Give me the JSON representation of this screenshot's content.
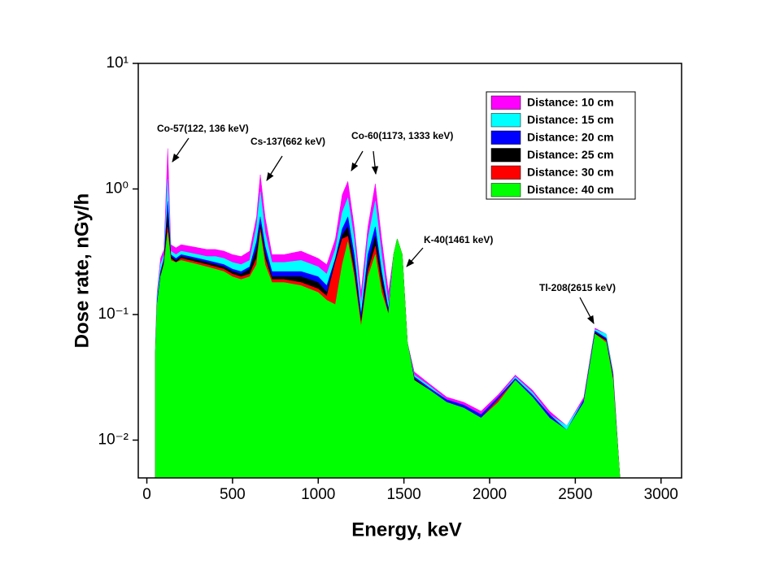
{
  "chart_data": {
    "type": "area",
    "log_y": true,
    "x_label": "Energy, keV",
    "y_label": "Dose rate, nGy/h",
    "xlim": [
      -50,
      3120
    ],
    "ylim": [
      0.005,
      10
    ],
    "xticks": [
      0,
      500,
      1000,
      1500,
      2000,
      2500,
      3000
    ],
    "yticks": [
      {
        "value": 0.01,
        "label": "10⁻²"
      },
      {
        "value": 0.1,
        "label": "10⁻¹"
      },
      {
        "value": 1,
        "label": "10⁰"
      },
      {
        "value": 10,
        "label": "10¹"
      }
    ],
    "legend": "upper right",
    "x": [
      50,
      60,
      80,
      100,
      122,
      140,
      170,
      200,
      250,
      300,
      350,
      400,
      450,
      500,
      550,
      600,
      640,
      662,
      690,
      730,
      800,
      900,
      1000,
      1050,
      1100,
      1140,
      1173,
      1210,
      1250,
      1290,
      1333,
      1370,
      1410,
      1440,
      1461,
      1490,
      1520,
      1560,
      1650,
      1750,
      1850,
      1950,
      2050,
      2150,
      2250,
      2350,
      2450,
      2550,
      2615,
      2680,
      2720,
      2760,
      2800,
      3000
    ],
    "series": [
      {
        "name": "Distance: 10 cm",
        "color": "#ff00ff",
        "values": [
          0.06,
          0.15,
          0.28,
          0.33,
          2.1,
          0.36,
          0.34,
          0.36,
          0.35,
          0.34,
          0.33,
          0.33,
          0.32,
          0.3,
          0.29,
          0.32,
          0.6,
          1.3,
          0.6,
          0.3,
          0.3,
          0.32,
          0.28,
          0.25,
          0.4,
          0.9,
          1.15,
          0.5,
          0.15,
          0.5,
          1.1,
          0.4,
          0.15,
          0.3,
          0.4,
          0.3,
          0.06,
          0.035,
          0.028,
          0.022,
          0.02,
          0.017,
          0.023,
          0.033,
          0.025,
          0.017,
          0.013,
          0.022,
          0.078,
          0.07,
          0.035,
          0.005,
          0.005,
          0.005
        ]
      },
      {
        "name": "Distance: 15 cm",
        "color": "#00ffff",
        "values": [
          0.055,
          0.14,
          0.25,
          0.3,
          1.2,
          0.32,
          0.3,
          0.32,
          0.31,
          0.3,
          0.29,
          0.29,
          0.28,
          0.26,
          0.25,
          0.27,
          0.5,
          0.95,
          0.45,
          0.26,
          0.26,
          0.27,
          0.24,
          0.21,
          0.33,
          0.65,
          0.85,
          0.4,
          0.12,
          0.4,
          0.8,
          0.3,
          0.12,
          0.3,
          0.4,
          0.3,
          0.06,
          0.033,
          0.027,
          0.021,
          0.019,
          0.016,
          0.022,
          0.032,
          0.024,
          0.016,
          0.013,
          0.021,
          0.076,
          0.07,
          0.034,
          0.005,
          0.005,
          0.005
        ]
      },
      {
        "name": "Distance: 20 cm",
        "color": "#0000ff",
        "values": [
          0.05,
          0.13,
          0.22,
          0.28,
          0.8,
          0.3,
          0.28,
          0.3,
          0.29,
          0.28,
          0.27,
          0.26,
          0.25,
          0.23,
          0.22,
          0.24,
          0.38,
          0.6,
          0.35,
          0.22,
          0.22,
          0.22,
          0.2,
          0.17,
          0.28,
          0.48,
          0.6,
          0.3,
          0.1,
          0.3,
          0.5,
          0.22,
          0.11,
          0.3,
          0.4,
          0.3,
          0.06,
          0.032,
          0.026,
          0.021,
          0.019,
          0.016,
          0.022,
          0.031,
          0.023,
          0.016,
          0.012,
          0.021,
          0.074,
          0.065,
          0.033,
          0.005,
          0.005,
          0.005
        ]
      },
      {
        "name": "Distance: 25 cm",
        "color": "#000000",
        "values": [
          0.05,
          0.12,
          0.21,
          0.27,
          0.65,
          0.29,
          0.27,
          0.29,
          0.28,
          0.27,
          0.26,
          0.25,
          0.24,
          0.22,
          0.21,
          0.23,
          0.33,
          0.52,
          0.31,
          0.2,
          0.2,
          0.2,
          0.18,
          0.15,
          0.27,
          0.43,
          0.5,
          0.25,
          0.09,
          0.25,
          0.42,
          0.2,
          0.1,
          0.3,
          0.4,
          0.3,
          0.06,
          0.031,
          0.025,
          0.02,
          0.018,
          0.015,
          0.021,
          0.03,
          0.022,
          0.015,
          0.012,
          0.02,
          0.072,
          0.063,
          0.032,
          0.005,
          0.005,
          0.005
        ]
      },
      {
        "name": "Distance: 30 cm",
        "color": "#ff0000",
        "values": [
          0.05,
          0.12,
          0.2,
          0.26,
          0.5,
          0.28,
          0.26,
          0.28,
          0.27,
          0.26,
          0.25,
          0.24,
          0.23,
          0.21,
          0.2,
          0.21,
          0.28,
          0.48,
          0.28,
          0.19,
          0.19,
          0.18,
          0.16,
          0.14,
          0.26,
          0.4,
          0.42,
          0.22,
          0.085,
          0.22,
          0.35,
          0.17,
          0.1,
          0.3,
          0.4,
          0.3,
          0.06,
          0.03,
          0.025,
          0.02,
          0.018,
          0.015,
          0.021,
          0.03,
          0.022,
          0.015,
          0.012,
          0.02,
          0.07,
          0.062,
          0.031,
          0.005,
          0.005,
          0.005
        ]
      },
      {
        "name": "Distance: 40 cm",
        "color": "#00ff00",
        "values": [
          0.05,
          0.12,
          0.2,
          0.25,
          0.45,
          0.27,
          0.26,
          0.27,
          0.26,
          0.25,
          0.24,
          0.23,
          0.22,
          0.2,
          0.19,
          0.2,
          0.25,
          0.45,
          0.25,
          0.18,
          0.18,
          0.17,
          0.15,
          0.13,
          0.12,
          0.25,
          0.38,
          0.2,
          0.08,
          0.2,
          0.3,
          0.15,
          0.1,
          0.3,
          0.4,
          0.3,
          0.06,
          0.03,
          0.025,
          0.02,
          0.018,
          0.015,
          0.02,
          0.03,
          0.022,
          0.015,
          0.012,
          0.02,
          0.07,
          0.06,
          0.03,
          0.005,
          0.005,
          0.005
        ]
      }
    ],
    "annotations": [
      "Co-57(122, 136 keV)",
      "Cs-137(662 keV)",
      "Co-60(1173, 1333 keV)",
      "K-40(1461 keV)",
      "Tl-208(2615 keV)"
    ]
  }
}
